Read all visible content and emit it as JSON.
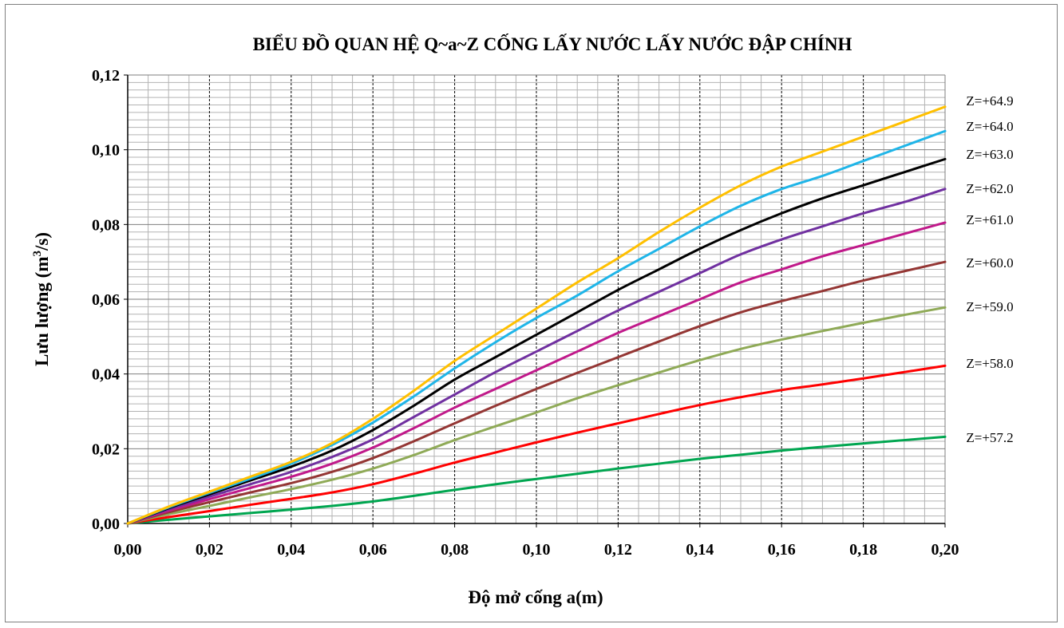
{
  "chart_data": {
    "type": "line",
    "title": "BIỂU ĐỒ QUAN HỆ Q~a~Z CỐNG LẤY NƯỚC LẤY NƯỚC ĐẬP CHÍNH",
    "xlabel": "Độ mở cống a(m)",
    "ylabel_main": "Lưu lượng (m",
    "ylabel_sup": "3",
    "ylabel_tail": "/s)",
    "xlim": [
      0,
      0.2
    ],
    "ylim": [
      0,
      0.12
    ],
    "x_ticks": [
      "0,00",
      "0,02",
      "0,04",
      "0,06",
      "0,08",
      "0,10",
      "0,12",
      "0,14",
      "0,16",
      "0,18",
      "0,20"
    ],
    "y_ticks": [
      "0,00",
      "0,02",
      "0,04",
      "0,06",
      "0,08",
      "0,10",
      "0,12"
    ],
    "grid": true,
    "x": [
      0,
      0.01,
      0.02,
      0.03,
      0.04,
      0.05,
      0.06,
      0.07,
      0.08,
      0.09,
      0.1,
      0.11,
      0.12,
      0.13,
      0.14,
      0.15,
      0.16,
      0.17,
      0.18,
      0.19,
      0.2
    ],
    "series": [
      {
        "name": "Z=+64.9",
        "color": "#ffc000",
        "values": [
          0,
          0.0045,
          0.0085,
          0.0125,
          0.0165,
          0.0215,
          0.028,
          0.0355,
          0.0435,
          0.0505,
          0.0575,
          0.0645,
          0.071,
          0.078,
          0.0845,
          0.0905,
          0.0955,
          0.0995,
          0.1035,
          0.1075,
          0.1115
        ]
      },
      {
        "name": "Z=+64.0",
        "color": "#1fb5e8",
        "values": [
          0,
          0.0043,
          0.0082,
          0.012,
          0.016,
          0.021,
          0.027,
          0.034,
          0.0415,
          0.0485,
          0.055,
          0.061,
          0.0675,
          0.0735,
          0.0795,
          0.085,
          0.0895,
          0.093,
          0.097,
          0.101,
          0.105
        ]
      },
      {
        "name": "Z=+63.0",
        "color": "#000000",
        "values": [
          0,
          0.0041,
          0.0078,
          0.0115,
          0.0152,
          0.0195,
          0.025,
          0.0315,
          0.0385,
          0.0445,
          0.0505,
          0.0565,
          0.0625,
          0.068,
          0.0735,
          0.0785,
          0.083,
          0.087,
          0.0905,
          0.094,
          0.0975
        ]
      },
      {
        "name": "Z=+62.0",
        "color": "#7030a0",
        "values": [
          0,
          0.0038,
          0.0072,
          0.0105,
          0.0138,
          0.0178,
          0.0225,
          0.0285,
          0.0345,
          0.0405,
          0.046,
          0.0515,
          0.057,
          0.062,
          0.067,
          0.072,
          0.076,
          0.0795,
          0.083,
          0.086,
          0.0895
        ]
      },
      {
        "name": "Z=+61.0",
        "color": "#c0198a",
        "values": [
          0,
          0.0034,
          0.0065,
          0.0095,
          0.0125,
          0.016,
          0.0203,
          0.0255,
          0.031,
          0.036,
          0.041,
          0.046,
          0.051,
          0.0555,
          0.06,
          0.0645,
          0.068,
          0.0715,
          0.0745,
          0.0775,
          0.0805
        ]
      },
      {
        "name": "Z=+60.0",
        "color": "#943634",
        "values": [
          0,
          0.003,
          0.0057,
          0.0083,
          0.0108,
          0.0138,
          0.0175,
          0.022,
          0.0268,
          0.0315,
          0.036,
          0.0403,
          0.0445,
          0.0487,
          0.0528,
          0.0565,
          0.0595,
          0.0622,
          0.065,
          0.0675,
          0.07
        ]
      },
      {
        "name": "Z=+59.0",
        "color": "#8faa57",
        "values": [
          0,
          0.0025,
          0.0047,
          0.007,
          0.0092,
          0.0117,
          0.0147,
          0.0183,
          0.0223,
          0.026,
          0.0297,
          0.0335,
          0.037,
          0.0404,
          0.0437,
          0.0467,
          0.0492,
          0.0515,
          0.0537,
          0.0558,
          0.0578
        ]
      },
      {
        "name": "Z=+58.0",
        "color": "#ff0000",
        "values": [
          0,
          0.0017,
          0.0033,
          0.005,
          0.0066,
          0.0083,
          0.0105,
          0.0133,
          0.0163,
          0.019,
          0.0217,
          0.0243,
          0.0268,
          0.0293,
          0.0317,
          0.0338,
          0.0357,
          0.0372,
          0.0388,
          0.0405,
          0.0422
        ]
      },
      {
        "name": "Z=+57.2",
        "color": "#00a650",
        "values": [
          0,
          0.001,
          0.0019,
          0.0028,
          0.0037,
          0.0047,
          0.0059,
          0.0074,
          0.009,
          0.0105,
          0.0119,
          0.0133,
          0.0147,
          0.016,
          0.0173,
          0.0184,
          0.0195,
          0.0205,
          0.0214,
          0.0223,
          0.0232
        ]
      }
    ]
  }
}
